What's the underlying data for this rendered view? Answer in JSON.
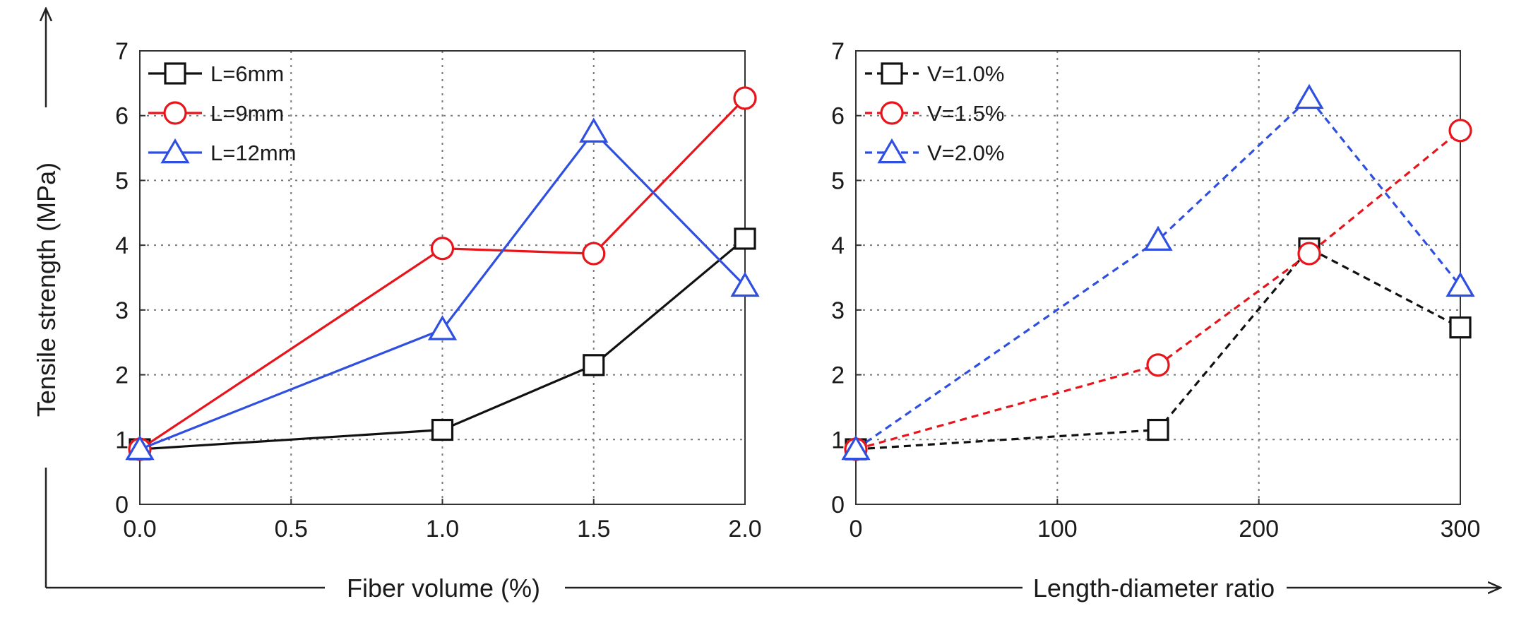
{
  "shared": {
    "ylabel": "Tensile strength (MPa)",
    "colors": {
      "black": "#111111",
      "red": "#e8141b",
      "blue": "#2f4fe0"
    }
  },
  "chart_data": [
    {
      "type": "line",
      "xlabel": "Fiber volume (%)",
      "ylabel": "Tensile strength (MPa)",
      "xlim": [
        0.0,
        2.0
      ],
      "ylim": [
        0,
        7
      ],
      "xticks": [
        "0.0",
        "0.5",
        "1.0",
        "1.5",
        "2.0"
      ],
      "yticks": [
        "0",
        "1",
        "2",
        "3",
        "4",
        "5",
        "6",
        "7"
      ],
      "grid": true,
      "legend": "top-left",
      "series": [
        {
          "name": "L=6mm",
          "marker": "square",
          "style": "solid",
          "color": "#111111",
          "x": [
            0.0,
            1.0,
            1.5,
            2.0
          ],
          "y": [
            0.85,
            1.15,
            2.15,
            4.1
          ]
        },
        {
          "name": "L=9mm",
          "marker": "circle",
          "style": "solid",
          "color": "#e8141b",
          "x": [
            0.0,
            1.0,
            1.5,
            2.0
          ],
          "y": [
            0.85,
            3.95,
            3.87,
            6.27
          ]
        },
        {
          "name": "L=12mm",
          "marker": "triangle",
          "style": "solid",
          "color": "#2f4fe0",
          "x": [
            0.0,
            1.0,
            1.5,
            2.0
          ],
          "y": [
            0.85,
            2.7,
            5.75,
            3.37
          ]
        }
      ]
    },
    {
      "type": "line",
      "xlabel": "Length-diameter ratio",
      "ylabel": "",
      "xlim": [
        0,
        300
      ],
      "ylim": [
        0,
        7
      ],
      "xticks": [
        "0",
        "100",
        "200",
        "300"
      ],
      "yticks": [
        "0",
        "1",
        "2",
        "3",
        "4",
        "5",
        "6",
        "7"
      ],
      "grid": true,
      "legend": "top-left",
      "series": [
        {
          "name": "V=1.0%",
          "marker": "square",
          "style": "dashed",
          "color": "#111111",
          "x": [
            0,
            150,
            225,
            300
          ],
          "y": [
            0.85,
            1.15,
            3.95,
            2.73
          ]
        },
        {
          "name": "V=1.5%",
          "marker": "circle",
          "style": "dashed",
          "color": "#e8141b",
          "x": [
            0,
            150,
            225,
            300
          ],
          "y": [
            0.85,
            2.15,
            3.87,
            5.77
          ]
        },
        {
          "name": "V=2.0%",
          "marker": "triangle",
          "style": "dashed",
          "color": "#2f4fe0",
          "x": [
            0,
            150,
            225,
            300
          ],
          "y": [
            0.85,
            4.08,
            6.27,
            3.37
          ]
        }
      ]
    }
  ]
}
